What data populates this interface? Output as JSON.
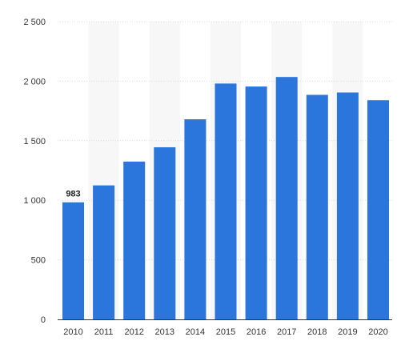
{
  "chart_data": {
    "type": "bar",
    "title": "",
    "xlabel": "",
    "ylabel": "",
    "categories": [
      "2010",
      "2011",
      "2012",
      "2013",
      "2014",
      "2015",
      "2016",
      "2017",
      "2018",
      "2019",
      "2020"
    ],
    "values": [
      983,
      1125,
      1325,
      1445,
      1680,
      1980,
      1955,
      2035,
      1885,
      1905,
      1840
    ],
    "data_labels": [
      {
        "index": 0,
        "text": "983"
      }
    ],
    "ylim": [
      0,
      2500
    ],
    "yticks": [
      0,
      500,
      1000,
      1500,
      2000,
      2500
    ],
    "ytick_labels": [
      "0",
      "500",
      "1 000",
      "1 500",
      "2 000",
      "2 500"
    ],
    "grid": true,
    "legend": "none",
    "colors": {
      "bar": "#2a76dd",
      "band": "#f7f7f7",
      "grid": "#d9d9d9",
      "axis": "#333333"
    }
  }
}
